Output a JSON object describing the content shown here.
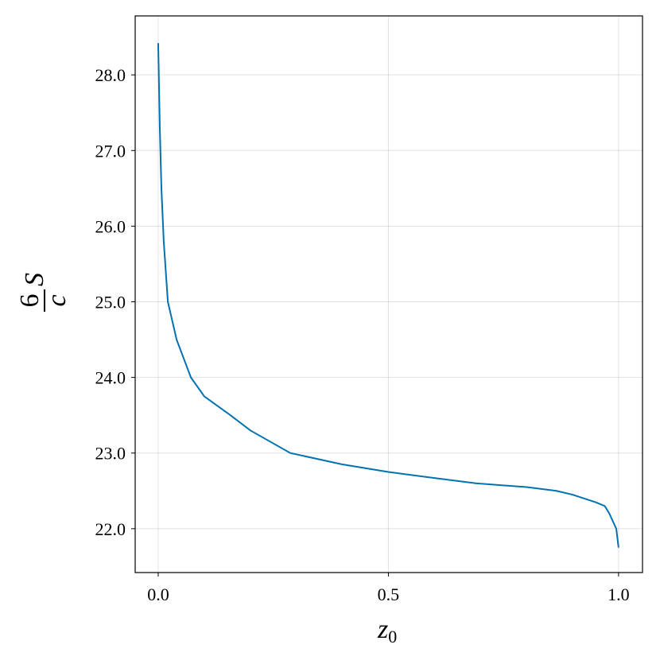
{
  "chart_data": {
    "type": "line",
    "xlabel": {
      "base": "z",
      "subscript": "0"
    },
    "ylabel": {
      "numerator": "6",
      "denominator": "c",
      "factor": "S"
    },
    "x": [
      0.0,
      0.0035,
      0.007,
      0.012,
      0.021,
      0.04,
      0.071,
      0.1,
      0.157,
      0.2,
      0.287,
      0.4,
      0.5,
      0.6,
      0.69,
      0.8,
      0.865,
      0.9,
      0.95,
      0.97,
      0.98,
      0.995,
      1.0
    ],
    "series": [
      {
        "name": "S",
        "color": "#0072b2",
        "values": [
          28.42,
          27.3,
          26.5,
          25.8,
          25.0,
          24.5,
          24.0,
          23.75,
          23.5,
          23.3,
          23.0,
          22.85,
          22.75,
          22.67,
          22.6,
          22.55,
          22.5,
          22.45,
          22.35,
          22.3,
          22.2,
          22.0,
          21.75
        ]
      }
    ],
    "xlim": [
      -0.05,
      1.052
    ],
    "ylim": [
      21.42,
      28.78
    ],
    "xticks": [
      {
        "value": 0,
        "label": "0.0"
      },
      0.5,
      {
        "value": 1,
        "label": "1.0"
      }
    ],
    "yticks": [
      {
        "value": 22,
        "label": "22.0"
      },
      {
        "value": 23,
        "label": "23.0"
      },
      {
        "value": 24,
        "label": "24.0"
      },
      {
        "value": 25,
        "label": "25.0"
      },
      {
        "value": 26,
        "label": "26.0"
      },
      {
        "value": 27,
        "label": "27.0"
      },
      {
        "value": 28,
        "label": "28.0"
      }
    ],
    "grid": true
  }
}
